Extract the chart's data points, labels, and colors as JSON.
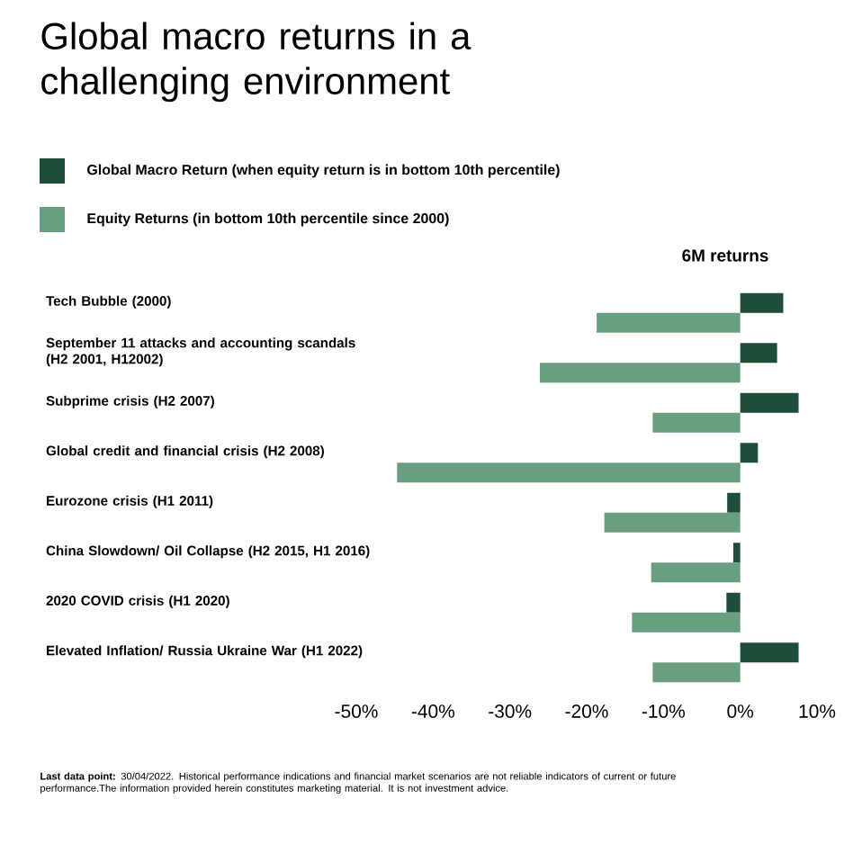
{
  "chart_data": {
    "type": "bar",
    "orientation": "horizontal",
    "title": "Global macro returns in a challenging environment",
    "subtitle": "6M returns",
    "categories": [
      "Tech Bubble (2000)",
      "September 11 attacks and accounting scandals (H2 2001, H12002)",
      "Subprime crisis (H2 2007)",
      "Global credit and financial crisis (H2 2008)",
      "Eurozone crisis (H1 2011)",
      "China Slowdown/ Oil Collapse (H2 2015, H1 2016)",
      "2020 COVID crisis (H1 2020)",
      "Elevated Inflation/ Russia Ukraine War (H1 2022)"
    ],
    "series": [
      {
        "name": "Global Macro Return (when equity return is in bottom 10th percentile)",
        "color": "#1e4d38",
        "values": [
          5.6,
          4.8,
          7.6,
          2.3,
          -1.7,
          -0.9,
          -1.8,
          7.6
        ]
      },
      {
        "name": "Equity Returns (in bottom 10th percentile since 2000)",
        "color": "#6a9e80",
        "values": [
          -18.7,
          -26.1,
          -11.4,
          -44.7,
          -17.7,
          -11.6,
          -14.1,
          -11.4
        ]
      }
    ],
    "xlim": [
      -50,
      10
    ],
    "xticks": [
      {
        "value": -50,
        "label": "-50%"
      },
      {
        "value": -40,
        "label": "-40%"
      },
      {
        "value": -30,
        "label": "-30%"
      },
      {
        "value": -20,
        "label": "-20%"
      },
      {
        "value": -10,
        "label": "-10%"
      },
      {
        "value": 0,
        "label": "0%"
      },
      {
        "value": 10,
        "label": "10%"
      }
    ],
    "legend": "top left",
    "annotations": [
      "**Last data point:** 30/04/2022. Historical performance indications and financial market scenarios are not reliable indicators of current or future performance.The information provided herein constitutes marketing material. It is not investment advice."
    ]
  }
}
